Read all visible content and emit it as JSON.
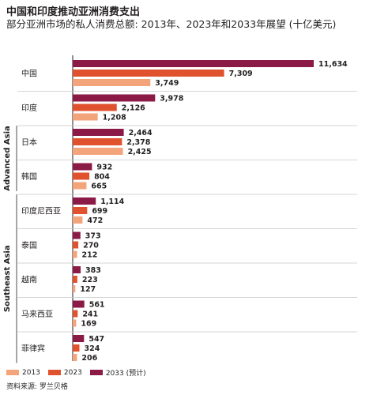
{
  "title": "中国和印度推动亚洲消费支出",
  "subtitle": "部分亚洲市场的私人消费总额: 2013年、2023年和2033年展望 (十亿美元)",
  "source": "资料来源: 罗兰贝格",
  "colors": {
    "y2013": "#f4a47a",
    "y2023": "#e0522e",
    "y2033": "#8b1a47"
  },
  "chart_data": {
    "type": "bar",
    "orientation": "horizontal",
    "categories": [
      "中国",
      "印度",
      "日本",
      "韩国",
      "印度尼西亚",
      "泰国",
      "越南",
      "马来西亚",
      "菲律宾"
    ],
    "groups": [
      {
        "label": "Advanced Asia",
        "categories": [
          "日本",
          "韩国"
        ]
      },
      {
        "label": "Southeast Asia",
        "categories": [
          "印度尼西亚",
          "泰国",
          "越南",
          "马来西亚",
          "菲律宾"
        ]
      }
    ],
    "series": [
      {
        "name": "2033 (预计)",
        "values": [
          11634,
          3978,
          2464,
          932,
          1114,
          373,
          383,
          561,
          547
        ]
      },
      {
        "name": "2023",
        "values": [
          7309,
          2126,
          2378,
          804,
          699,
          270,
          223,
          241,
          324
        ]
      },
      {
        "name": "2013",
        "values": [
          3749,
          1208,
          2425,
          665,
          472,
          212,
          127,
          169,
          206
        ]
      }
    ],
    "value_labels": [
      [
        "11,634",
        "7,309",
        "3,749"
      ],
      [
        "3,978",
        "2,126",
        "1,208"
      ],
      [
        "2,464",
        "2,378",
        "2,425"
      ],
      [
        "932",
        "804",
        "665"
      ],
      [
        "1,114",
        "699",
        "472"
      ],
      [
        "373",
        "270",
        "212"
      ],
      [
        "383",
        "223",
        "127"
      ],
      [
        "561",
        "241",
        "169"
      ],
      [
        "547",
        "324",
        "206"
      ]
    ],
    "legend": [
      {
        "name": "2013",
        "color": "#f4a47a"
      },
      {
        "name": "2023",
        "color": "#e0522e"
      },
      {
        "name": "2033 (预计)",
        "color": "#8b1a47"
      }
    ],
    "xlim": [
      0,
      11634
    ],
    "legend_position": "bottom-left",
    "grid": false
  }
}
